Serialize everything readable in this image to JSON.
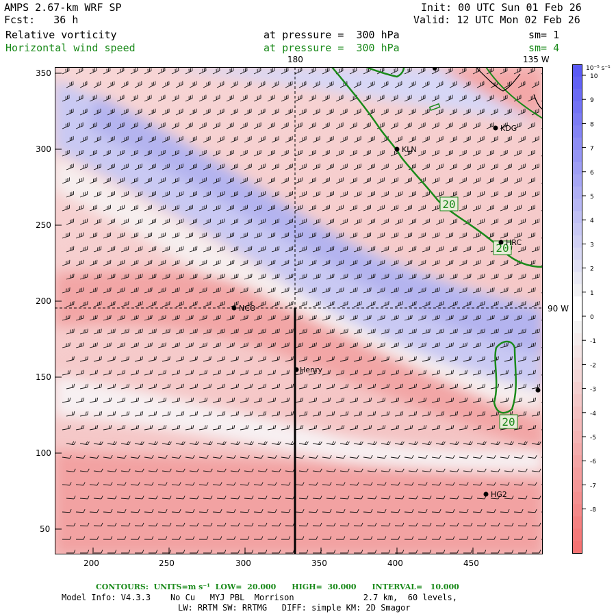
{
  "header": {
    "model_title": "AMPS 2.67-km WRF SP",
    "forecast": "Fcst:   36 h",
    "init": "Init: 00 UTC Sun 01 Feb 26",
    "valid": "Valid: 12 UTC Mon 02 Feb 26",
    "field1_name": "Relative vorticity",
    "field1_level": "at pressure =  300 hPa",
    "field1_sm": "sm= 1",
    "field2_name": "Horizontal wind speed",
    "field2_level": "at pressure =  300 hPa",
    "field2_sm": "sm= 4"
  },
  "map": {
    "meridian_label_top": "180",
    "meridian_label_topright": "135 W",
    "meridian_label_right": "90 W",
    "x_ticks": [
      "200",
      "250",
      "300",
      "350",
      "400",
      "450"
    ],
    "y_ticks": [
      "350",
      "300",
      "250",
      "200",
      "150",
      "100",
      "50"
    ],
    "stations": [
      "KDG",
      "KLN",
      "HRC",
      "NCO",
      "Henry",
      "HG2"
    ],
    "contour_labels": [
      "20",
      "20",
      "20"
    ],
    "colors": {
      "positive": "#5a5af0",
      "negative": "#f07070",
      "contour": "#1a8a1a"
    }
  },
  "colorbar": {
    "unit": "10⁻⁵ s⁻¹",
    "labels": [
      "10",
      "9",
      "8",
      "7",
      "6",
      "5",
      "4",
      "3",
      "2",
      "1",
      "0",
      "-1",
      "-2",
      "-3",
      "-4",
      "-5",
      "-6",
      "-7",
      "-8"
    ]
  },
  "footer": {
    "contours_line": "CONTOURS:  UNITS=m s⁻¹  LOW=  20.000      HIGH=  30.000      INTERVAL=   10.000",
    "model_info": "Model Info: V4.3.3    No Cu   MYJ PBL  Morrison              2.7 km,  60 levels,",
    "physics": "LW: RRTM SW: RRTMG   DIFF: simple KM: 2D Smagor"
  }
}
